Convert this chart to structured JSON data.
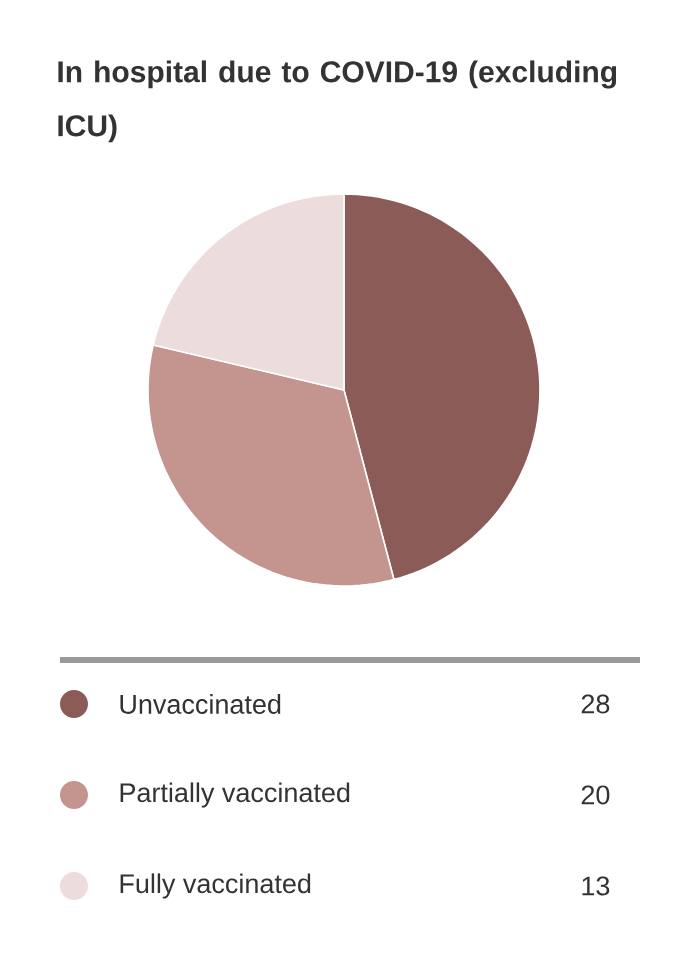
{
  "chart_data": {
    "type": "pie",
    "title": "In hospital due to COVID-19 (excluding ICU)",
    "categories": [
      "Unvaccinated",
      "Partially vaccinated",
      "Fully vaccinated"
    ],
    "values": [
      28,
      20,
      13
    ],
    "colors": [
      "#8b5c57",
      "#c4948f",
      "#eddcdc"
    ],
    "legend": "bottom",
    "data_labels": true
  }
}
